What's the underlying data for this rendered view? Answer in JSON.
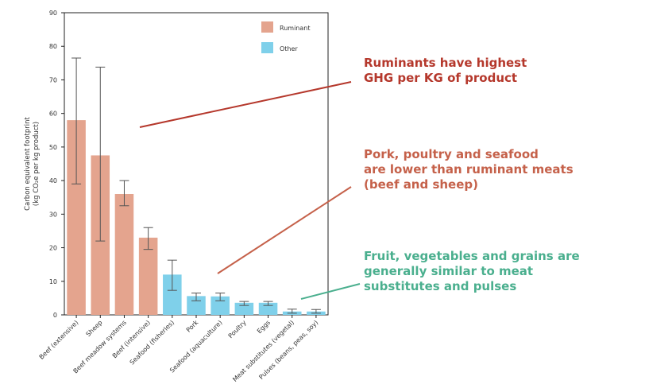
{
  "chart_data": {
    "type": "bar",
    "title": "",
    "xlabel": "",
    "ylabel": "Carbon equivalent footprint",
    "ylabel_line2": "(kg CO₂e per kg product)",
    "ylim": [
      0,
      90
    ],
    "yticks": [
      0,
      10,
      20,
      30,
      40,
      50,
      60,
      70,
      80,
      90
    ],
    "grid": false,
    "legend_position": "top-right",
    "legend": [
      {
        "name": "Ruminant",
        "color": "#e4a48e"
      },
      {
        "name": "Other",
        "color": "#7fd0ea"
      }
    ],
    "categories": [
      "Beef (extensive)",
      "Sheep",
      "Beef meadow systems",
      "Beef (intensive)",
      "Seafood (fisheries)",
      "Pork",
      "Seafood (aquaculture)",
      "Poultry",
      "Eggs",
      "Meat substitutes (vegetal)",
      "Pulses (beans, peas, soy)"
    ],
    "group": [
      "Ruminant",
      "Ruminant",
      "Ruminant",
      "Ruminant",
      "Other",
      "Other",
      "Other",
      "Other",
      "Other",
      "Other",
      "Other"
    ],
    "values": [
      58,
      47.5,
      36,
      23,
      12,
      5.6,
      5.5,
      3.6,
      3.6,
      1,
      1
    ],
    "error_low": [
      39,
      22,
      32.5,
      19.5,
      7.3,
      4.2,
      4.2,
      2.8,
      2.8,
      0.5,
      0.5
    ],
    "error_high": [
      76.5,
      73.8,
      40,
      26,
      16.3,
      6.5,
      6.5,
      4,
      4,
      1.7,
      1.6
    ]
  },
  "annotations": [
    {
      "lines": [
        "Ruminants have highest",
        "GHG per KG of product"
      ],
      "color": "#b5382c"
    },
    {
      "lines": [
        "Pork, poultry and seafood",
        "are lower than ruminant meats",
        "(beef and sheep)"
      ],
      "color": "#c5614a"
    },
    {
      "lines": [
        "Fruit, vegetables and grains are",
        "generally similar to meat",
        "substitutes and pulses"
      ],
      "color": "#4aaf8e"
    }
  ]
}
